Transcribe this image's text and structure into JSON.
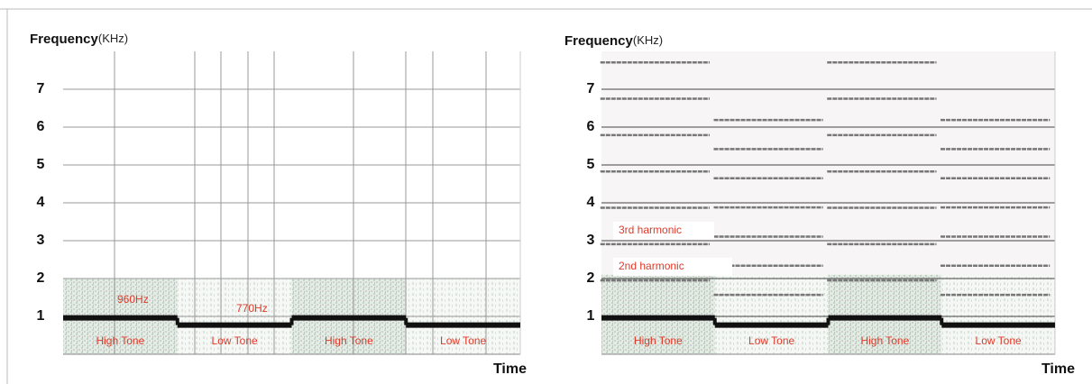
{
  "chart_data": [
    {
      "type": "spectrogram",
      "title": "Frequency",
      "y_unit": "(KHz)",
      "x_label": "Time",
      "categories": [
        "High Tone",
        "Low Tone",
        "High Tone",
        "Low Tone"
      ],
      "values": [
        [
          0.96
        ],
        [
          0.77
        ],
        [
          0.96
        ],
        [
          0.77
        ]
      ],
      "annotations": [
        "960Hz",
        "770Hz"
      ],
      "ylim": [
        0,
        8
      ],
      "yticks": [
        1,
        2,
        3,
        4,
        5,
        6,
        7
      ],
      "grid": true,
      "color": "#111111"
    },
    {
      "type": "spectrogram",
      "title": "Frequency",
      "y_unit": "(KHz)",
      "x_label": "Time",
      "categories": [
        "High Tone",
        "Low Tone",
        "High Tone",
        "Low Tone"
      ],
      "values": [
        [
          0.96,
          1.92,
          2.88,
          3.84,
          4.8,
          5.76,
          6.72,
          7.68
        ],
        [
          0.77,
          1.54,
          2.31,
          3.08,
          3.85,
          4.62,
          5.39,
          6.16
        ],
        [
          0.96,
          1.92,
          2.88,
          3.84,
          4.8,
          5.76,
          6.72,
          7.68
        ],
        [
          0.77,
          1.54,
          2.31,
          3.08,
          3.85,
          4.62,
          5.39,
          6.16
        ]
      ],
      "annotations": [
        "3rd harmonic",
        "2nd harmonic"
      ],
      "ylim": [
        0,
        8
      ],
      "yticks": [
        1,
        2,
        3,
        4,
        5,
        6,
        7
      ],
      "grid": true,
      "color": "#111111"
    }
  ]
}
